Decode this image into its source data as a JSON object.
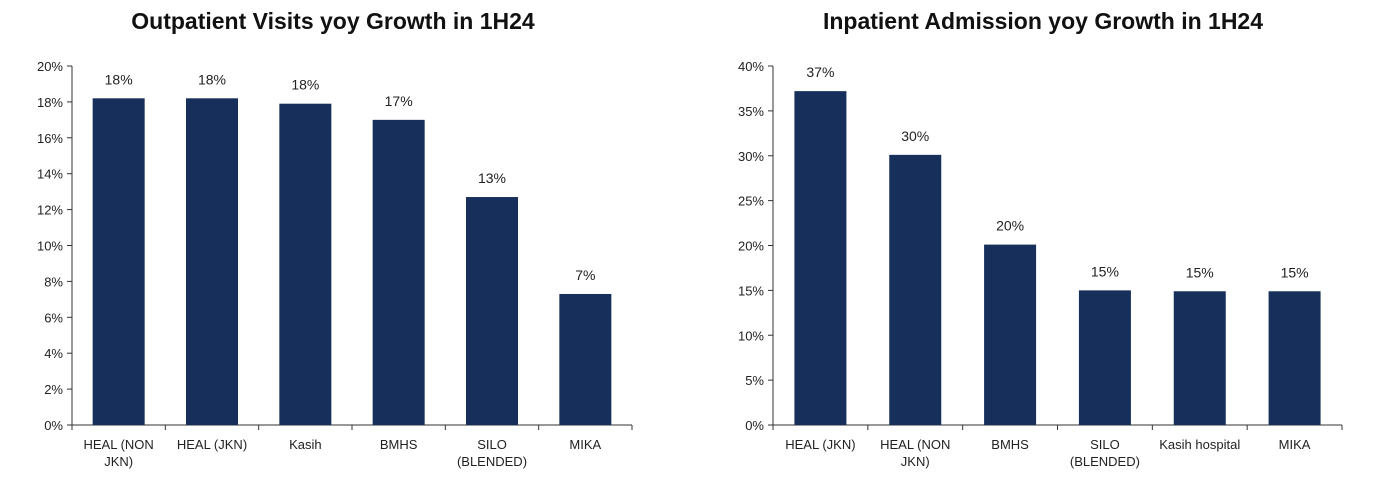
{
  "chart_data": [
    {
      "type": "bar",
      "title": "Outpatient Visits yoy Growth in 1H24",
      "categories": [
        [
          "HEAL (NON",
          "JKN)"
        ],
        [
          "HEAL (JKN)"
        ],
        [
          "Kasih"
        ],
        [
          "BMHS"
        ],
        [
          "SILO",
          "(BLENDED)"
        ],
        [
          "MIKA"
        ]
      ],
      "values": [
        18.2,
        18.2,
        17.9,
        17.0,
        12.7,
        7.3
      ],
      "data_labels": [
        "18%",
        "18%",
        "18%",
        "17%",
        "13%",
        "7%"
      ],
      "ylim": [
        0,
        20
      ],
      "yticks": [
        0,
        2,
        4,
        6,
        8,
        10,
        12,
        14,
        16,
        18,
        20
      ],
      "ytick_labels": [
        "0%",
        "2%",
        "4%",
        "6%",
        "8%",
        "10%",
        "12%",
        "14%",
        "16%",
        "18%",
        "20%"
      ],
      "bar_color": "#162f5b",
      "grid": false,
      "xlabel": "",
      "ylabel": ""
    },
    {
      "type": "bar",
      "title": "Inpatient Admission yoy Growth in 1H24",
      "categories": [
        [
          "HEAL (JKN)"
        ],
        [
          "HEAL (NON",
          "JKN)"
        ],
        [
          "BMHS"
        ],
        [
          "SILO",
          "(BLENDED)"
        ],
        [
          "Kasih hospital"
        ],
        [
          "MIKA"
        ]
      ],
      "values": [
        37.2,
        30.1,
        20.1,
        15.0,
        14.9,
        14.9
      ],
      "data_labels": [
        "37%",
        "30%",
        "20%",
        "15%",
        "15%",
        "15%"
      ],
      "ylim": [
        0,
        40
      ],
      "yticks": [
        0,
        5,
        10,
        15,
        20,
        25,
        30,
        35,
        40
      ],
      "ytick_labels": [
        "0%",
        "5%",
        "10%",
        "15%",
        "20%",
        "25%",
        "30%",
        "35%",
        "40%"
      ],
      "bar_color": "#162f5b",
      "grid": false,
      "xlabel": "",
      "ylabel": ""
    }
  ]
}
